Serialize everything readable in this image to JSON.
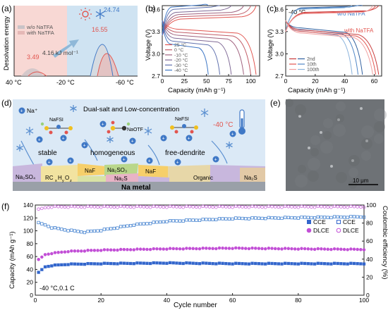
{
  "colors": {
    "warm_bg": "#f8d8d4",
    "cool_bg": "#cfe3f2",
    "series_red": "#e2554f",
    "series_blue": "#3f78c6",
    "ce_purple": "#c24fd6",
    "cap_blue": "#3366cc",
    "ce_blue": "#3377cc",
    "scheme_bg": "#dbe9f6",
    "na_metal": "#9aa0a8",
    "sem": "#6e7276"
  },
  "panels": [
    {
      "label": "(a)",
      "chart_data": {
        "type": "bar",
        "ylabel": "Desolvation energy",
        "x_ticks": [
          "40 °C",
          "-20 °C",
          "-60 °C"
        ],
        "legend": [
          "w/o NaTFA",
          "with NaTFA"
        ],
        "values": [
          3.49,
          16.55,
          24.74
        ],
        "annotations": [
          "3.49",
          "4.16 kJ mol⁻¹",
          "16.55",
          "24.74"
        ],
        "icons": [
          "sun-icon",
          "snowflake-icon"
        ]
      }
    },
    {
      "label": "(b)",
      "chart_data": {
        "type": "line",
        "xlabel": "Capacity (mAh g⁻¹)",
        "ylabel": "Voltage (V)",
        "xlim": [
          0,
          110
        ],
        "ylim": [
          2.7,
          3.65
        ],
        "x_ticks": [
          0,
          25,
          50,
          75,
          100
        ],
        "y_ticks": [
          2.7,
          3.0,
          3.3,
          3.6
        ],
        "legend": [
          "25 °C",
          "0 °C",
          "-10 °C",
          "-20 °C",
          "-30 °C",
          "-40 °C"
        ],
        "series": [
          {
            "name": "25 °C",
            "charge_plateau": 3.47,
            "end_capacity": 106
          },
          {
            "name": "0 °C",
            "charge_plateau": 3.5,
            "end_capacity": 100
          },
          {
            "name": "-10 °C",
            "charge_plateau": 3.53,
            "end_capacity": 92
          },
          {
            "name": "-20 °C",
            "charge_plateau": 3.56,
            "end_capacity": 78
          },
          {
            "name": "-30 °C",
            "charge_plateau": 3.6,
            "end_capacity": 65
          },
          {
            "name": "-40 °C",
            "charge_plateau": 3.63,
            "end_capacity": 52
          }
        ]
      }
    },
    {
      "label": "(c)",
      "chart_data": {
        "type": "line",
        "title": "-40 °C",
        "xlabel": "Capacity (mAh g⁻¹)",
        "ylabel": "Voltage (V)",
        "xlim": [
          0,
          65
        ],
        "ylim": [
          2.7,
          3.65
        ],
        "x_ticks": [
          0,
          20,
          40,
          60
        ],
        "y_ticks": [
          2.7,
          3.0,
          3.3,
          3.6
        ],
        "legend": [
          "2nd",
          "10th",
          "100th"
        ],
        "series_labels": [
          "w/o NaTFA",
          "with NaTFA"
        ],
        "series": [
          {
            "name": "w/o NaTFA",
            "end_capacity": [
              52,
              49,
              45
            ]
          },
          {
            "name": "with NaTFA",
            "end_capacity": [
              63,
              61,
              59
            ]
          }
        ]
      }
    },
    {
      "label": "(d)",
      "legend_na": "Na⁺",
      "title": "Dual-salt and Low-concentration",
      "temperature": "-40 °C",
      "salts": [
        "NaFSI",
        "NaOTF",
        "NaFSI"
      ],
      "features": [
        "stable",
        "homogeneous",
        "free-dendrite"
      ],
      "sei_species": [
        "Na₂SO₄",
        "RC",
        "H",
        "O",
        "NaF",
        "Na₂SO₃",
        "Na₂S",
        "NaF",
        "Organic",
        "Na₂S"
      ],
      "substrate": "Na metal"
    },
    {
      "label": "(e)",
      "scale_bar": "10 μm"
    },
    {
      "label": "(f)",
      "condition": "-40 °C,0.1 C",
      "chart_data": {
        "type": "scatter",
        "xlabel": "Cycle number",
        "ylabel": "Capacity (mAh g⁻¹)",
        "y2label": "Coulombic efficiency (%)",
        "xlim": [
          0,
          100
        ],
        "ylim": [
          0,
          140
        ],
        "y2lim": [
          0,
          100
        ],
        "x_ticks": [
          0,
          20,
          40,
          60,
          80,
          100
        ],
        "y_ticks": [
          0,
          20,
          40,
          60,
          80,
          100,
          120,
          140
        ],
        "y2_ticks": [
          0,
          20,
          40,
          60,
          80,
          100
        ],
        "legend": [
          {
            "marker": "filled-square",
            "name": "CCE"
          },
          {
            "marker": "open-square",
            "name": "CCE"
          },
          {
            "marker": "filled-circle",
            "name": "DLCE"
          },
          {
            "marker": "open-circle",
            "name": "DLCE"
          }
        ],
        "series": [
          {
            "name": "CCE capacity",
            "points": [
              [
                1,
                35
              ],
              [
                3,
                44
              ],
              [
                5,
                46
              ],
              [
                10,
                48
              ],
              [
                20,
                49
              ],
              [
                40,
                50
              ],
              [
                60,
                49
              ],
              [
                80,
                49
              ],
              [
                100,
                49
              ]
            ]
          },
          {
            "name": "CCE efficiency",
            "points": [
              [
                1,
                80
              ],
              [
                3,
                78
              ],
              [
                5,
                75
              ],
              [
                10,
                72
              ],
              [
                15,
                70
              ],
              [
                20,
                72
              ],
              [
                30,
                78
              ],
              [
                40,
                82
              ],
              [
                60,
                85
              ],
              [
                80,
                86
              ],
              [
                100,
                87
              ]
            ]
          },
          {
            "name": "DLCE capacity",
            "points": [
              [
                1,
                55
              ],
              [
                3,
                63
              ],
              [
                5,
                65
              ],
              [
                10,
                68
              ],
              [
                20,
                70
              ],
              [
                40,
                72
              ],
              [
                60,
                73
              ],
              [
                80,
                72
              ],
              [
                100,
                71
              ]
            ]
          },
          {
            "name": "DLCE efficiency",
            "points": [
              [
                1,
                95
              ],
              [
                3,
                97
              ],
              [
                5,
                98
              ],
              [
                20,
                98
              ],
              [
                40,
                98
              ],
              [
                60,
                98
              ],
              [
                80,
                98
              ],
              [
                100,
                98
              ]
            ]
          }
        ]
      }
    }
  ]
}
